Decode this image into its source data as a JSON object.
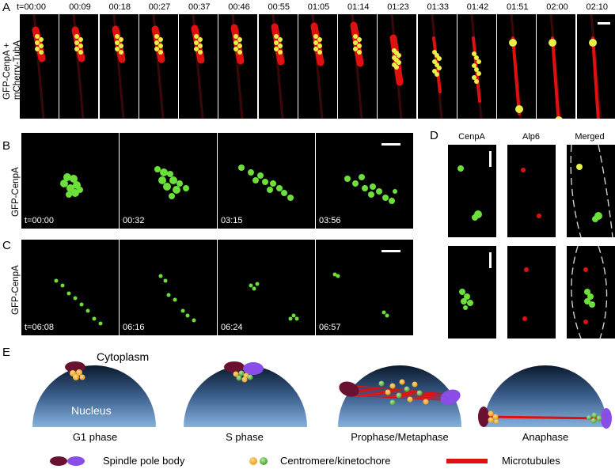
{
  "panelA": {
    "letter": "A",
    "ylabel": "GFP-CenpA +\nmCherry-TubA",
    "times": [
      "t=00:00",
      "00:09",
      "00:18",
      "00:27",
      "00:37",
      "00:46",
      "00:55",
      "01:05",
      "01:14",
      "01:23",
      "01:33",
      "01:42",
      "01:51",
      "02:00",
      "02:10"
    ]
  },
  "panelB": {
    "letter": "B",
    "ylabel": "GFP-CenpA",
    "times": [
      "t=00:00",
      "00:32",
      "03:15",
      "03:56"
    ]
  },
  "panelC": {
    "letter": "C",
    "ylabel": "GFP-CenpA",
    "times": [
      "t=06:08",
      "06:16",
      "06:24",
      "06:57"
    ]
  },
  "panelD": {
    "letter": "D",
    "columns": [
      "CenpA",
      "Alp6",
      "Merged"
    ]
  },
  "panelE": {
    "letter": "E",
    "cytoplasm": "Cytoplasm",
    "nucleus": "Nucleus",
    "stages": [
      "G1 phase",
      "S phase",
      "Prophase/Metaphase",
      "Anaphase"
    ],
    "legend": {
      "spb": "Spindle pole body",
      "centromere": "Centromere/kinetochore",
      "microtubules": "Microtubules"
    }
  },
  "colors": {
    "microtubule": "#e01010",
    "kinetochore_green": "#4cd02a",
    "kinetochore_yellow": "#e8e838",
    "spb_dark": "#6a1030",
    "spb_purple": "#8a4de8",
    "nucleus_top": "#0b1a2e",
    "nucleus_bottom": "#7aa7d6"
  }
}
